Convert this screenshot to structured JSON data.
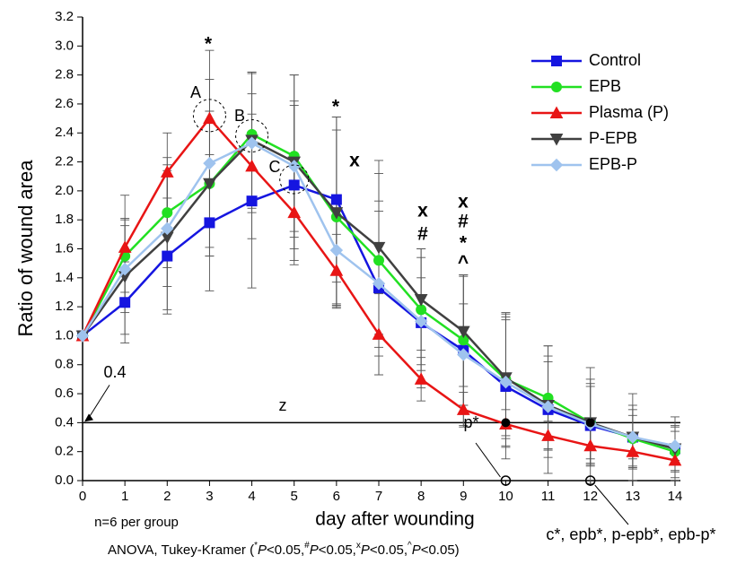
{
  "chart_data": {
    "type": "line",
    "x_label": "day after wounding",
    "y_label": "Ratio of wound area",
    "x": [
      0,
      1,
      2,
      3,
      4,
      5,
      6,
      7,
      8,
      9,
      10,
      11,
      12,
      13,
      14
    ],
    "xlim": [
      0,
      14
    ],
    "xticks": [
      0,
      1,
      2,
      3,
      4,
      5,
      6,
      7,
      8,
      9,
      10,
      11,
      12,
      13,
      14
    ],
    "ylim": [
      0,
      3.2
    ],
    "yticks": [
      {
        "value": 0,
        "label": "0.0"
      },
      0.2,
      0.4,
      0.6,
      0.8,
      {
        "value": 1,
        "label": "1.0"
      },
      1.2,
      1.4,
      1.6,
      1.8,
      {
        "value": 2,
        "label": "2.0"
      },
      2.2,
      2.4,
      2.6,
      2.8,
      {
        "value": 3,
        "label": "3.0"
      },
      3.2
    ],
    "legend_position": "upper right",
    "series": [
      {
        "name": "Control",
        "color": "#1515e0",
        "marker": "square",
        "values": [
          1.0,
          1.23,
          1.55,
          1.78,
          1.93,
          2.04,
          1.94,
          1.33,
          1.09,
          0.9,
          0.65,
          0.49,
          0.38,
          0.3,
          0.22
        ],
        "errors": [
          0,
          0.28,
          0.4,
          0.47,
          0.6,
          0.55,
          0.57,
          0.6,
          0.45,
          0.52,
          0.5,
          0.44,
          0.4,
          0.3,
          0.22
        ]
      },
      {
        "name": "EPB",
        "color": "#22e022",
        "marker": "circle",
        "values": [
          1.0,
          1.55,
          1.85,
          2.05,
          2.39,
          2.24,
          1.82,
          1.52,
          1.18,
          0.97,
          0.7,
          0.57,
          0.4,
          0.29,
          0.2
        ],
        "errors": [
          0,
          0.25,
          0.38,
          0.5,
          0.43,
          0.56,
          0.6,
          0.6,
          0.42,
          0.45,
          0.46,
          0.36,
          0.25,
          0.2,
          0.18
        ]
      },
      {
        "name": "Plasma (P)",
        "color": "#e81515",
        "marker": "triangle",
        "values": [
          1.0,
          1.61,
          2.13,
          2.5,
          2.17,
          1.85,
          1.45,
          1.01,
          0.7,
          0.49,
          0.39,
          0.31,
          0.24,
          0.2,
          0.14
        ],
        "errors": [
          0,
          0.36,
          0.27,
          0.47,
          0.5,
          0.33,
          0.25,
          0.28,
          0.15,
          0.12,
          0.1,
          0.1,
          0.12,
          0.1,
          0.08
        ]
      },
      {
        "name": "P-EPB",
        "color": "#404040",
        "marker": "triangle-down",
        "values": [
          1.0,
          1.41,
          1.68,
          2.05,
          2.35,
          2.2,
          1.85,
          1.61,
          1.25,
          1.03,
          0.71,
          0.52,
          0.4,
          0.3,
          0.22
        ],
        "errors": [
          0,
          0.4,
          0.5,
          0.5,
          0.47,
          0.6,
          0.66,
          0.6,
          0.35,
          0.38,
          0.4,
          0.3,
          0.3,
          0.22,
          0.15
        ]
      },
      {
        "name": "EPB-P",
        "color": "#9fc3ee",
        "marker": "diamond",
        "values": [
          1.0,
          1.46,
          1.74,
          2.19,
          2.33,
          2.17,
          1.59,
          1.36,
          1.1,
          0.87,
          0.68,
          0.51,
          0.39,
          0.3,
          0.24
        ],
        "errors": [
          0,
          0.3,
          0.4,
          0.58,
          0.48,
          0.45,
          0.38,
          0.5,
          0.3,
          0.35,
          0.45,
          0.35,
          0.28,
          0.15,
          0.1
        ]
      }
    ],
    "reference_line": 0.4,
    "annotations": [
      "*",
      "A",
      "B",
      "C",
      "*",
      "x",
      "x",
      "#",
      "x",
      "#",
      "*",
      "^",
      "z",
      "p*",
      "c*, epb*, p-epb*, epb-p*",
      "n=6 per group"
    ],
    "footnote": [
      "ANOVA, Tukey-Kramer (",
      "*",
      "P",
      "<0.05,",
      "#",
      "P",
      "<0.05,",
      "x",
      "P",
      "<0.05,",
      "^",
      "P",
      "<0.05)"
    ]
  }
}
